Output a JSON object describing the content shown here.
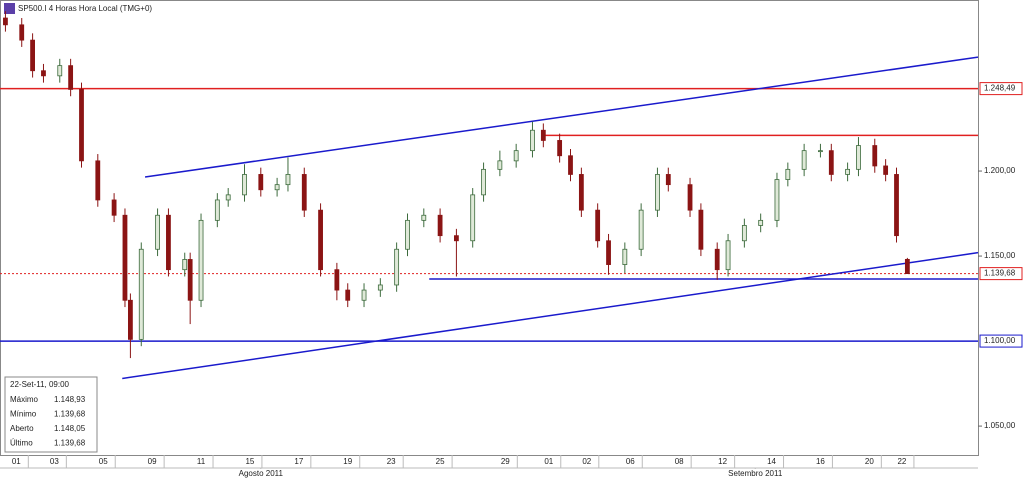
{
  "chart_data": {
    "type": "candlestick",
    "title": "SP500.I 4 Horas Hora Local (TMG+0)",
    "x": [
      1,
      4,
      6,
      8,
      11,
      13,
      15,
      18,
      21,
      23,
      24,
      26,
      29,
      31,
      34,
      35,
      37,
      40,
      42,
      45,
      48,
      51,
      53,
      56,
      59,
      62,
      64,
      67,
      70,
      73,
      75,
      78,
      81,
      84,
      87,
      89,
      92,
      95,
      98,
      100,
      103,
      105,
      107,
      110,
      112,
      115,
      118,
      121,
      123,
      127,
      129,
      132,
      134,
      137,
      140,
      143,
      145,
      148,
      151,
      153,
      156,
      158,
      161,
      163,
      165,
      167
    ],
    "open": [
      1290,
      1286,
      1277,
      1259,
      1256,
      1262,
      1248,
      1206,
      1183,
      1174,
      1124,
      1101,
      1154,
      1174,
      1142,
      1148,
      1124,
      1171,
      1183,
      1186,
      1198,
      1189,
      1192,
      1198,
      1177,
      1142,
      1130,
      1124,
      1130,
      1133,
      1154,
      1171,
      1174,
      1162,
      1159,
      1186,
      1201,
      1206,
      1212,
      1224,
      1218,
      1209,
      1198,
      1177,
      1159,
      1145,
      1154,
      1177,
      1198,
      1192,
      1177,
      1154,
      1142,
      1159,
      1168,
      1171,
      1195,
      1201,
      1212,
      1212,
      1198,
      1201,
      1215,
      1203,
      1198,
      1148.05
    ],
    "high": [
      1294,
      1290,
      1281,
      1263,
      1266,
      1266,
      1252,
      1210,
      1187,
      1178,
      1128,
      1158,
      1178,
      1178,
      1152,
      1152,
      1175,
      1187,
      1190,
      1204,
      1202,
      1196,
      1208,
      1202,
      1181,
      1146,
      1134,
      1134,
      1137,
      1158,
      1175,
      1178,
      1178,
      1166,
      1190,
      1205,
      1212,
      1216,
      1229,
      1228,
      1222,
      1213,
      1202,
      1181,
      1163,
      1158,
      1181,
      1202,
      1202,
      1196,
      1181,
      1158,
      1163,
      1172,
      1175,
      1199,
      1205,
      1216,
      1216,
      1216,
      1205,
      1220,
      1219,
      1207,
      1202,
      1148.93
    ],
    "low": [
      1282,
      1273,
      1255,
      1252,
      1252,
      1244,
      1202,
      1179,
      1170,
      1120,
      1090,
      1097,
      1150,
      1138,
      1138,
      1110,
      1120,
      1167,
      1179,
      1182,
      1185,
      1185,
      1188,
      1173,
      1138,
      1124,
      1120,
      1120,
      1126,
      1129,
      1150,
      1167,
      1158,
      1138,
      1155,
      1182,
      1197,
      1202,
      1208,
      1214,
      1205,
      1194,
      1173,
      1155,
      1139,
      1140,
      1150,
      1173,
      1188,
      1173,
      1150,
      1136,
      1138,
      1155,
      1164,
      1167,
      1191,
      1197,
      1208,
      1194,
      1194,
      1197,
      1199,
      1194,
      1158,
      1139.68
    ],
    "close": [
      1286,
      1277,
      1259,
      1256,
      1262,
      1248,
      1206,
      1183,
      1174,
      1124,
      1101,
      1154,
      1174,
      1142,
      1148,
      1124,
      1171,
      1183,
      1186,
      1198,
      1189,
      1192,
      1198,
      1177,
      1142,
      1130,
      1124,
      1130,
      1133,
      1154,
      1171,
      1174,
      1162,
      1159,
      1186,
      1201,
      1206,
      1212,
      1224,
      1218,
      1209,
      1198,
      1177,
      1159,
      1145,
      1154,
      1177,
      1198,
      1192,
      1177,
      1154,
      1142,
      1159,
      1168,
      1171,
      1195,
      1201,
      1212,
      1212,
      1198,
      1201,
      1215,
      1203,
      1198,
      1162,
      1139.68
    ],
    "up_color": "#dfe9d8",
    "up_stroke": "#3d6b3d",
    "down_color": "#8b1414",
    "xlim": [
      0,
      180
    ],
    "ylim": [
      1033,
      1300.6
    ],
    "xticks": [
      {
        "value": 3,
        "label": "01"
      },
      {
        "value": 10,
        "label": "03"
      },
      {
        "value": 19,
        "label": "05"
      },
      {
        "value": 28,
        "label": "09"
      },
      {
        "value": 37,
        "label": "11"
      },
      {
        "value": 46,
        "label": "15"
      },
      {
        "value": 55,
        "label": "17"
      },
      {
        "value": 64,
        "label": "19"
      },
      {
        "value": 72,
        "label": "23"
      },
      {
        "value": 81,
        "label": "25"
      },
      {
        "value": 93,
        "label": "29"
      },
      {
        "value": 101,
        "label": "01"
      },
      {
        "value": 108,
        "label": "02"
      },
      {
        "value": 116,
        "label": "06"
      },
      {
        "value": 125,
        "label": "08"
      },
      {
        "value": 133,
        "label": "12"
      },
      {
        "value": 142,
        "label": "14"
      },
      {
        "value": 151,
        "label": "16"
      },
      {
        "value": 160,
        "label": "20"
      },
      {
        "value": 166,
        "label": "22"
      }
    ],
    "month_ticks": [
      {
        "value": 48,
        "label": "Agosto 2011"
      },
      {
        "value": 139,
        "label": "Setembro 2011"
      }
    ],
    "yticks": [
      {
        "value": 1050,
        "label": "1.050,00"
      },
      {
        "value": 1150,
        "label": "1.150,00"
      },
      {
        "value": 1200,
        "label": "1.200,00"
      }
    ],
    "levels": [
      {
        "value": 1248.49,
        "label": "1.248,49",
        "color": "#e02020",
        "style": "solid"
      },
      {
        "value": 1139.68,
        "label": "1.139,68",
        "color": "#e02020",
        "style": "dotted"
      },
      {
        "value": 1100,
        "label": "1.100,00",
        "color": "#1a1acc",
        "style": "solid"
      }
    ],
    "lines": [
      {
        "x": [
          26.7,
          180
        ],
        "y": [
          1196.5,
          1267
        ],
        "color": "#1a1acc"
      },
      {
        "x": [
          22.5,
          180
        ],
        "y": [
          1078,
          1152
        ],
        "color": "#1a1acc"
      },
      {
        "x": [
          100,
          180
        ],
        "y": [
          1221,
          1221
        ],
        "color": "#e02020"
      },
      {
        "x": [
          79,
          180
        ],
        "y": [
          1136.5,
          1136.5
        ],
        "color": "#1a1acc"
      }
    ],
    "info": {
      "datetime": "22-Set-11, 09:00",
      "rows": [
        [
          "Máximo",
          "1.148,93"
        ],
        [
          "Mínimo",
          "1.139,68"
        ],
        [
          "Aberto",
          "1.148,05"
        ],
        [
          "Último",
          "1.139,68"
        ]
      ]
    }
  }
}
